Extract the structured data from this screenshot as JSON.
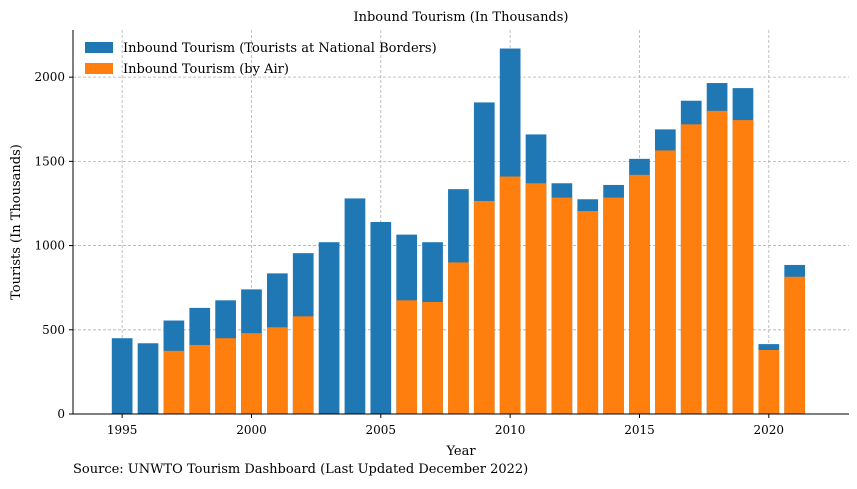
{
  "chart_data": {
    "type": "bar",
    "title": "Inbound Tourism (In Thousands)",
    "xlabel": "Year",
    "ylabel": "Tourists (In Thousands)",
    "xlim": [
      1993.1,
      2023.1
    ],
    "ylim": [
      0,
      2280
    ],
    "x_ticks": [
      1995,
      2000,
      2005,
      2010,
      2015,
      2020
    ],
    "y_ticks": [
      0,
      500,
      1000,
      1500,
      2000
    ],
    "grid": true,
    "legend_position": "top-left",
    "x": [
      1995,
      1996,
      1997,
      1998,
      1999,
      2000,
      2001,
      2002,
      2003,
      2004,
      2005,
      2006,
      2007,
      2008,
      2009,
      2010,
      2011,
      2012,
      2013,
      2014,
      2015,
      2016,
      2017,
      2018,
      2019,
      2020,
      2021
    ],
    "series": [
      {
        "name": "Inbound Tourism (Tourists at National Borders)",
        "color": "#1f77b4",
        "values": [
          450,
          420,
          555,
          630,
          675,
          740,
          835,
          955,
          1020,
          1280,
          1140,
          1065,
          1020,
          1335,
          1850,
          2170,
          1660,
          1370,
          1275,
          1360,
          1515,
          1690,
          1860,
          1965,
          1935,
          415,
          885
        ]
      },
      {
        "name": "Inbound Tourism (by Air)",
        "color": "#ff7f0e",
        "values": [
          null,
          null,
          375,
          410,
          450,
          480,
          515,
          580,
          null,
          null,
          null,
          675,
          665,
          900,
          1265,
          1410,
          1370,
          1285,
          1205,
          1285,
          1420,
          1565,
          1720,
          1800,
          1745,
          380,
          815
        ]
      }
    ]
  },
  "source_note": "Source: UNWTO Tourism Dashboard (Last Updated December 2022)"
}
